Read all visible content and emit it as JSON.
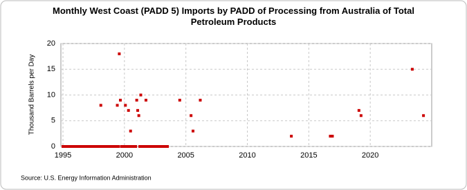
{
  "chart_data": {
    "type": "scatter",
    "title": "Monthly West Coast (PADD 5) Imports by PADD of Processing from Australia of Total Petroleum Products",
    "y_label": "Thousand Barrels per Day",
    "source": "Source: U.S. Energy Information Administration",
    "x": [
      1995.0,
      1995.08,
      1995.17,
      1995.25,
      1995.33,
      1995.42,
      1995.5,
      1995.58,
      1995.67,
      1995.75,
      1995.83,
      1995.92,
      1996.0,
      1996.08,
      1996.17,
      1996.25,
      1996.33,
      1996.42,
      1996.5,
      1996.58,
      1996.67,
      1996.75,
      1996.83,
      1996.92,
      1997.0,
      1997.08,
      1997.17,
      1997.25,
      1997.33,
      1997.42,
      1997.5,
      1997.58,
      1997.67,
      1997.75,
      1997.83,
      1997.92,
      1998.0,
      1998.08,
      1998.17,
      1998.25,
      1998.33,
      1998.42,
      1998.5,
      1998.58,
      1998.67,
      1998.75,
      1998.83,
      1998.92,
      1999.0,
      1999.08,
      1999.17,
      1999.25,
      1999.33,
      1999.42,
      1999.5,
      1999.58,
      1999.67,
      1999.75,
      1999.83,
      1999.92,
      2000.0,
      2000.08,
      2000.17,
      2000.25,
      2000.33,
      2000.42,
      2000.5,
      2000.58,
      2000.67,
      2000.75,
      2000.83,
      2000.92,
      2001.0,
      2001.08,
      2001.17,
      2001.25,
      2001.33,
      2001.42,
      2001.5,
      2001.58,
      2001.67,
      2001.75,
      2001.83,
      2001.92,
      2002.0,
      2002.08,
      2002.17,
      2002.25,
      2002.33,
      2002.42,
      2002.5,
      2002.58,
      2002.67,
      2002.75,
      2002.83,
      2002.92,
      2003.0,
      2003.08,
      2003.17,
      2003.25,
      2003.33,
      2003.42,
      2003.5,
      2004.5,
      2005.42,
      2005.58,
      2006.17,
      2013.58,
      2016.75,
      2016.92,
      2019.08,
      2019.25,
      2023.42,
      2024.33
    ],
    "series": [
      {
        "color": "#cc0000",
        "values": [
          0,
          0,
          0,
          0,
          0,
          0,
          0,
          0,
          0,
          0,
          0,
          0,
          0,
          0,
          0,
          0,
          0,
          0,
          0,
          0,
          0,
          0,
          0,
          0,
          0,
          0,
          0,
          0,
          0,
          0,
          0,
          0,
          0,
          0,
          0,
          0,
          0,
          8,
          0,
          0,
          0,
          0,
          0,
          0,
          0,
          0,
          0,
          0,
          0,
          0,
          0,
          0,
          0,
          8,
          0,
          18,
          9,
          0,
          0,
          0,
          0,
          8,
          0,
          0,
          7,
          0,
          3,
          0,
          0,
          0,
          0,
          0,
          9,
          7,
          6,
          0,
          10,
          0,
          0,
          0,
          0,
          9,
          0,
          0,
          0,
          0,
          0,
          0,
          0,
          0,
          0,
          0,
          0,
          0,
          0,
          0,
          0,
          0,
          0,
          0,
          0,
          0,
          0,
          9,
          6,
          3,
          9,
          2,
          2,
          2,
          7,
          6,
          15,
          6
        ]
      }
    ],
    "xlim": [
      1994.83,
      2025
    ],
    "xticks": [
      1995,
      2000,
      2005,
      2010,
      2015,
      2020
    ],
    "ylim": [
      0,
      20
    ],
    "yticks": [
      0,
      5,
      10,
      15,
      20
    ],
    "grid": true
  }
}
